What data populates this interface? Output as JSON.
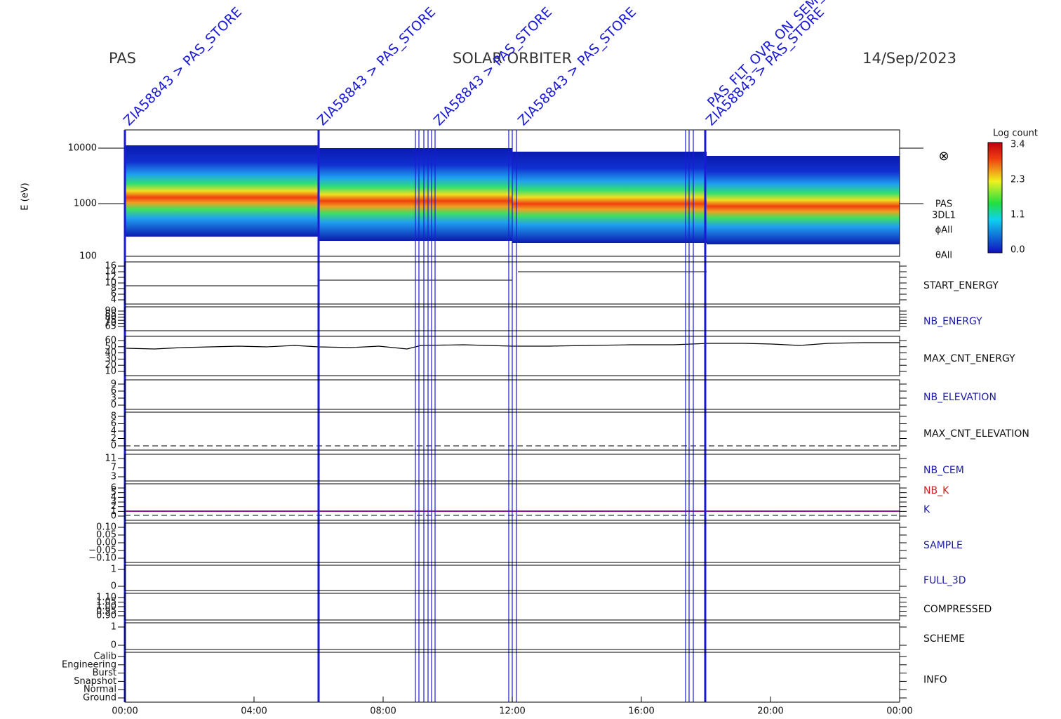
{
  "header": {
    "left": "PAS",
    "center": "SOLAR ORBITER",
    "right": "14/Sep/2023"
  },
  "spectrogram": {
    "ylabel": "E (eV)",
    "yticks": [
      "10000",
      "1000",
      "100"
    ],
    "side_labels": [
      "PAS",
      "3DL1",
      "ϕAll",
      "θAll"
    ],
    "colorbar": {
      "title": "Log count",
      "ticks": [
        "3.4",
        "2.3",
        "1.1",
        "0.0"
      ]
    }
  },
  "panels": [
    {
      "name": "START_ENERGY",
      "color": "#111111",
      "ticks": [
        "16",
        "14",
        "12",
        "10",
        "8",
        "6",
        "4"
      ]
    },
    {
      "name": "NB_ENERGY",
      "color": "#1a1aa6",
      "ticks": [
        "90",
        "85",
        "80",
        "75",
        "70",
        "65"
      ]
    },
    {
      "name": "MAX_CNT_ENERGY",
      "color": "#111111",
      "ticks": [
        "60",
        "50",
        "40",
        "30",
        "20",
        "10"
      ]
    },
    {
      "name": "NB_ELEVATION",
      "color": "#1a1aa6",
      "ticks": [
        "9",
        "6",
        "3",
        "0"
      ]
    },
    {
      "name": "MAX_CNT_ELEVATION",
      "color": "#111111",
      "ticks": [
        "8",
        "6",
        "4",
        "2",
        "0"
      ]
    },
    {
      "name": "NB_CEM",
      "color": "#1a1aa6",
      "ticks": [
        "11",
        "7",
        "3"
      ]
    },
    {
      "name": "NB_K",
      "color": "#d42020",
      "second_name": "K",
      "second_color": "#1a1aa6",
      "ticks": [
        "6",
        "5",
        "4",
        "3",
        "2",
        "1",
        "0"
      ]
    },
    {
      "name": "SAMPLE",
      "color": "#1a1aa6",
      "ticks": [
        "0.10",
        "0.05",
        "0.00",
        "−0.05",
        "−0.10"
      ]
    },
    {
      "name": "FULL_3D",
      "color": "#1a1aa6",
      "ticks": [
        "1",
        "0"
      ]
    },
    {
      "name": "COMPRESSED",
      "color": "#111111",
      "ticks": [
        "1.10",
        "1.05",
        "1.00",
        "0.95",
        "0.90"
      ]
    },
    {
      "name": "SCHEME",
      "color": "#111111",
      "ticks": [
        "1",
        "0"
      ]
    },
    {
      "name": "INFO",
      "color": "#111111",
      "ticks": [
        "Calib",
        "Engineering",
        "Burst",
        "Snapshot",
        "Normal",
        "Ground"
      ]
    }
  ],
  "xticks": [
    "00:00",
    "04:00",
    "08:00",
    "12:00",
    "16:00",
    "20:00",
    "00:00"
  ],
  "annotations": [
    {
      "text": "ZIA58843 > PAS_STORE",
      "color": "#1a1ad6"
    },
    {
      "text": "ZIA58843 > PAS_STORE",
      "color": "#1a1ad6"
    },
    {
      "text": "ZIA58843 > PAS_STORE",
      "color": "#1a1ad6"
    },
    {
      "text": "ZIA58843 > PAS_STORE",
      "color": "#1a1ad6"
    },
    {
      "text": "ZIA58843 > PAS_STORE",
      "color": "#1a1ad6"
    },
    {
      "text": "PAS_FLT_OVR_ON_SEM_NOT",
      "color": "#d42020"
    }
  ]
}
